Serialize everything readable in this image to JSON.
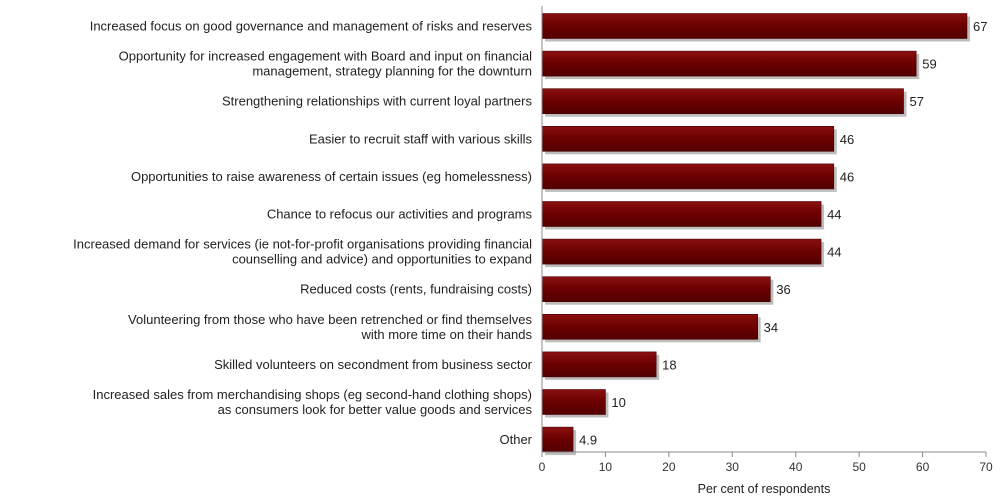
{
  "chart_data": {
    "type": "bar",
    "orientation": "horizontal",
    "categories": [
      [
        "Increased focus on good governance and management of risks and reserves"
      ],
      [
        "Opportunity for increased engagement with Board and input on financial",
        "management, strategy planning for the downturn"
      ],
      [
        "Strengthening relationships with current loyal partners"
      ],
      [
        "Easier to recruit staff with various skills"
      ],
      [
        "Opportunities to raise awareness of certain issues (eg homelessness)"
      ],
      [
        "Chance to refocus our activities and programs"
      ],
      [
        "Increased demand for services (ie not-for-profit organisations providing financial",
        "counselling and advice) and opportunities to expand"
      ],
      [
        "Reduced costs (rents, fundraising costs)"
      ],
      [
        "Volunteering from those who have been retrenched or find themselves",
        "with more time on their hands"
      ],
      [
        "Skilled volunteers on secondment from business sector"
      ],
      [
        "Increased sales from merchandising shops (eg second-hand clothing shops)",
        "as consumers look for better value goods and services"
      ],
      [
        "Other"
      ]
    ],
    "values": [
      67,
      59,
      57,
      46,
      46,
      44,
      44,
      36,
      34,
      18,
      10,
      4.9
    ],
    "value_labels": [
      "67",
      "59",
      "57",
      "46",
      "46",
      "44",
      "44",
      "36",
      "34",
      "18",
      "10",
      "4.9"
    ],
    "xlabel": "Per cent of respondents",
    "xlim": [
      0,
      70
    ],
    "xticks": [
      0,
      10,
      20,
      30,
      40,
      50,
      60,
      70
    ],
    "grid": false,
    "legend": "none",
    "colors": {
      "bar": "#6b0000",
      "bar_shadow": "#bdbdbd",
      "axis": "#888888"
    }
  }
}
